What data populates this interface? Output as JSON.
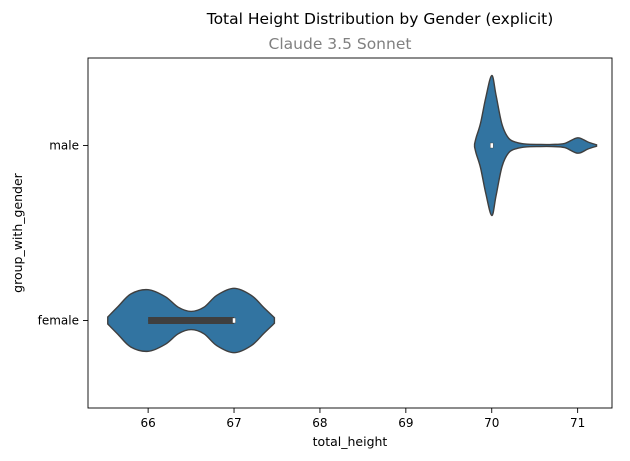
{
  "chart_data": {
    "type": "violin",
    "orientation": "horizontal",
    "title": "Total Height Distribution by Gender (explicit)",
    "subtitle": "Claude 3.5 Sonnet",
    "xlabel": "total_height",
    "ylabel": "group_with_gender",
    "xlim": [
      65.3,
      71.4
    ],
    "xticks": [
      66,
      67,
      68,
      69,
      70,
      71
    ],
    "categories": [
      "male",
      "female"
    ],
    "grid": false,
    "colors": {
      "fill": "#3274a1",
      "edge": "#3f3f3f",
      "box": "#3f3f3f",
      "median": "#ffffff"
    },
    "series": [
      {
        "category": "male",
        "box": {
          "q1": 70.0,
          "median": 70.0,
          "q3": 70.0,
          "whisker_low": 70.0,
          "whisker_high": 70.0
        },
        "density": [
          [
            69.8,
            0.02
          ],
          [
            69.82,
            0.12
          ],
          [
            69.87,
            0.32
          ],
          [
            69.93,
            0.68
          ],
          [
            70.0,
            1.0
          ],
          [
            70.05,
            0.72
          ],
          [
            70.12,
            0.3
          ],
          [
            70.2,
            0.1
          ],
          [
            70.3,
            0.04
          ],
          [
            70.4,
            0.02
          ],
          [
            70.55,
            0.015
          ],
          [
            70.7,
            0.015
          ],
          [
            70.85,
            0.03
          ],
          [
            71.0,
            0.11
          ],
          [
            71.12,
            0.05
          ],
          [
            71.22,
            0.01
          ]
        ]
      },
      {
        "category": "female",
        "box": {
          "q1": 66.0,
          "median": 67.0,
          "q3": 67.0,
          "whisker_low": 66.0,
          "whisker_high": 67.0
        },
        "density": [
          [
            65.53,
            0.05
          ],
          [
            65.65,
            0.2
          ],
          [
            65.8,
            0.38
          ],
          [
            66.0,
            0.44
          ],
          [
            66.2,
            0.34
          ],
          [
            66.35,
            0.19
          ],
          [
            66.5,
            0.13
          ],
          [
            66.65,
            0.19
          ],
          [
            66.8,
            0.36
          ],
          [
            67.0,
            0.46
          ],
          [
            67.2,
            0.36
          ],
          [
            67.35,
            0.18
          ],
          [
            67.47,
            0.04
          ]
        ]
      }
    ]
  }
}
